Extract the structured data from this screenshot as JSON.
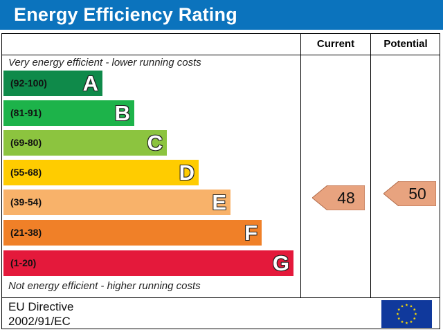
{
  "header": {
    "title": "Energy Efficiency Rating"
  },
  "columns": {
    "current": "Current",
    "potential": "Potential"
  },
  "notes": {
    "top": "Very energy efficient - lower running costs",
    "bottom": "Not energy efficient - higher running costs"
  },
  "bands": [
    {
      "range": "(92-100)",
      "letter": "A",
      "color": "#0f8a4a"
    },
    {
      "range": "(81-91)",
      "letter": "B",
      "color": "#1db34a"
    },
    {
      "range": "(69-80)",
      "letter": "C",
      "color": "#8cc43f"
    },
    {
      "range": "(55-68)",
      "letter": "D",
      "color": "#ffcc00"
    },
    {
      "range": "(39-54)",
      "letter": "E",
      "color": "#f8b26a"
    },
    {
      "range": "(21-38)",
      "letter": "F",
      "color": "#f08028"
    },
    {
      "range": "(1-20)",
      "letter": "G",
      "color": "#e4193b"
    }
  ],
  "ratings": {
    "current": {
      "value": "48",
      "color": "#e8a37f"
    },
    "potential": {
      "value": "50",
      "color": "#e8a37f"
    }
  },
  "footer": {
    "line1": "EU Directive",
    "line2": "2002/91/EC",
    "flag_icon": "eu-flag-icon",
    "flag_color": "#10399c",
    "star_color": "#ffdd00"
  }
}
